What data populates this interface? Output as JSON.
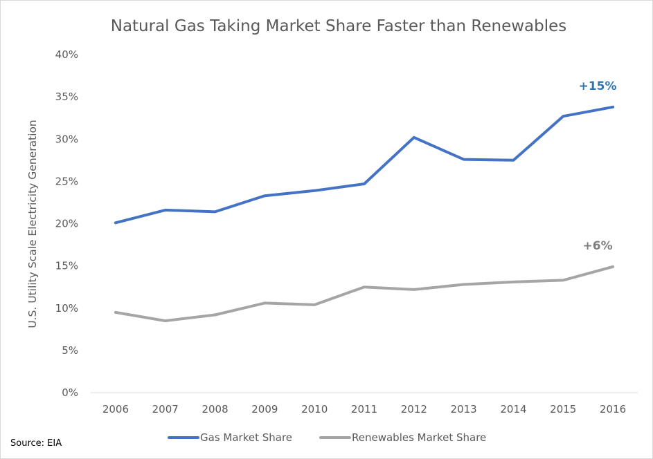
{
  "chart_data": {
    "type": "line",
    "title": "Natural Gas Taking Market Share Faster than Renewables",
    "xlabel": "",
    "ylabel": "U.S. Utility Scale Electricity Generation",
    "categories": [
      "2006",
      "2007",
      "2008",
      "2009",
      "2010",
      "2011",
      "2012",
      "2013",
      "2014",
      "2015",
      "2016"
    ],
    "ylim": [
      0,
      0.4
    ],
    "yticks": [
      0,
      0.05,
      0.1,
      0.15,
      0.2,
      0.25,
      0.3,
      0.35,
      0.4
    ],
    "ytick_labels": [
      "0%",
      "5%",
      "10%",
      "15%",
      "20%",
      "25%",
      "30%",
      "35%",
      "40%"
    ],
    "grid": false,
    "legend_position": "bottom",
    "series": [
      {
        "name": "Gas Market Share",
        "color": "#4472c4",
        "values": [
          0.201,
          0.216,
          0.214,
          0.233,
          0.239,
          0.247,
          0.302,
          0.276,
          0.275,
          0.327,
          0.338
        ]
      },
      {
        "name": "Renewables Market Share",
        "color": "#a5a5a5",
        "values": [
          0.095,
          0.085,
          0.092,
          0.106,
          0.104,
          0.125,
          0.122,
          0.128,
          0.131,
          0.133,
          0.149
        ]
      }
    ],
    "annotations": [
      {
        "text": "+15%",
        "series": 0,
        "color": "#2e75b6"
      },
      {
        "text": "+6%",
        "series": 1,
        "color": "#7f7f7f"
      }
    ]
  },
  "source": "Source: EIA"
}
